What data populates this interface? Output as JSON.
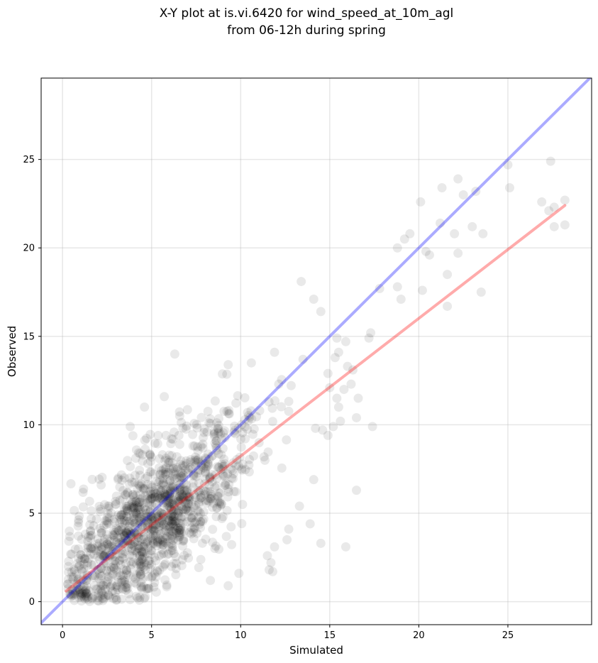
{
  "chart_data": {
    "type": "scatter",
    "title_line1": "X-Y plot at is.vi.6420 for wind_speed_at_10m_agl",
    "title_line2": "from 06-12h during spring",
    "xlabel": "Simulated",
    "ylabel": "Observed",
    "xlim": [
      -1.2,
      29.7
    ],
    "ylim": [
      -1.3,
      29.6
    ],
    "xticks": [
      0,
      5,
      10,
      15,
      20,
      25
    ],
    "yticks": [
      0,
      5,
      10,
      15,
      20,
      25
    ],
    "grid": true,
    "colors": {
      "points": "#000000",
      "identity_line": "#0000ff",
      "fit_line": "#ff0000"
    },
    "reference_lines": [
      {
        "kind": "identity",
        "x": [
          -1.2,
          29.7
        ],
        "y": [
          -1.2,
          29.7
        ]
      },
      {
        "kind": "fit",
        "x": [
          0.2,
          28.2
        ],
        "y": [
          0.6,
          22.4
        ]
      }
    ],
    "points": [
      [
        16.5,
        6.3
      ],
      [
        14.5,
        3.3
      ],
      [
        15.9,
        3.1
      ],
      [
        17.4,
        9.9
      ],
      [
        13.4,
        18.1
      ],
      [
        14.1,
        17.1
      ],
      [
        14.5,
        16.4
      ],
      [
        17.8,
        17.7
      ],
      [
        18.8,
        17.8
      ],
      [
        19.0,
        17.1
      ],
      [
        20.2,
        17.6
      ],
      [
        21.6,
        16.7
      ],
      [
        21.6,
        18.5
      ],
      [
        23.5,
        17.5
      ],
      [
        18.8,
        20.0
      ],
      [
        19.2,
        20.5
      ],
      [
        19.5,
        20.8
      ],
      [
        20.1,
        22.6
      ],
      [
        20.4,
        19.8
      ],
      [
        20.6,
        19.6
      ],
      [
        21.2,
        21.4
      ],
      [
        21.3,
        23.4
      ],
      [
        22.0,
        20.8
      ],
      [
        22.2,
        19.7
      ],
      [
        22.2,
        23.9
      ],
      [
        22.5,
        23.0
      ],
      [
        23.0,
        21.2
      ],
      [
        23.2,
        23.2
      ],
      [
        23.6,
        20.8
      ],
      [
        25.0,
        24.7
      ],
      [
        25.1,
        23.4
      ],
      [
        26.9,
        22.6
      ],
      [
        27.3,
        22.1
      ],
      [
        27.4,
        24.9
      ],
      [
        27.6,
        22.3
      ],
      [
        27.6,
        21.2
      ],
      [
        28.2,
        22.7
      ],
      [
        28.2,
        21.3
      ],
      [
        17.2,
        14.9
      ],
      [
        17.3,
        15.2
      ],
      [
        15.4,
        14.9
      ],
      [
        15.9,
        14.7
      ],
      [
        15.3,
        13.8
      ],
      [
        15.5,
        14.1
      ],
      [
        16.0,
        13.3
      ],
      [
        16.3,
        13.1
      ],
      [
        15.8,
        12.0
      ],
      [
        16.2,
        12.3
      ],
      [
        16.6,
        11.5
      ],
      [
        15.4,
        11.5
      ],
      [
        15.5,
        11.0
      ],
      [
        15.0,
        12.1
      ],
      [
        14.9,
        12.9
      ],
      [
        16.5,
        10.4
      ],
      [
        15.6,
        10.2
      ],
      [
        15.2,
        9.9
      ],
      [
        14.2,
        9.8
      ],
      [
        14.9,
        9.4
      ],
      [
        14.6,
        9.7
      ],
      [
        13.9,
        4.4
      ],
      [
        14.1,
        6.9
      ],
      [
        13.3,
        5.4
      ],
      [
        12.6,
        3.5
      ],
      [
        12.7,
        4.1
      ],
      [
        11.5,
        2.6
      ],
      [
        11.7,
        2.2
      ],
      [
        11.8,
        1.7
      ],
      [
        11.6,
        1.8
      ],
      [
        11.9,
        3.1
      ],
      [
        9.9,
        1.6
      ],
      [
        9.3,
        0.9
      ],
      [
        8.3,
        1.2
      ],
      [
        6.3,
        14.0
      ],
      [
        4.6,
        11.0
      ],
      [
        3.8,
        9.9
      ],
      [
        9.3,
        13.4
      ],
      [
        10.6,
        13.5
      ],
      [
        11.9,
        14.1
      ],
      [
        13.5,
        13.7
      ]
    ]
  }
}
